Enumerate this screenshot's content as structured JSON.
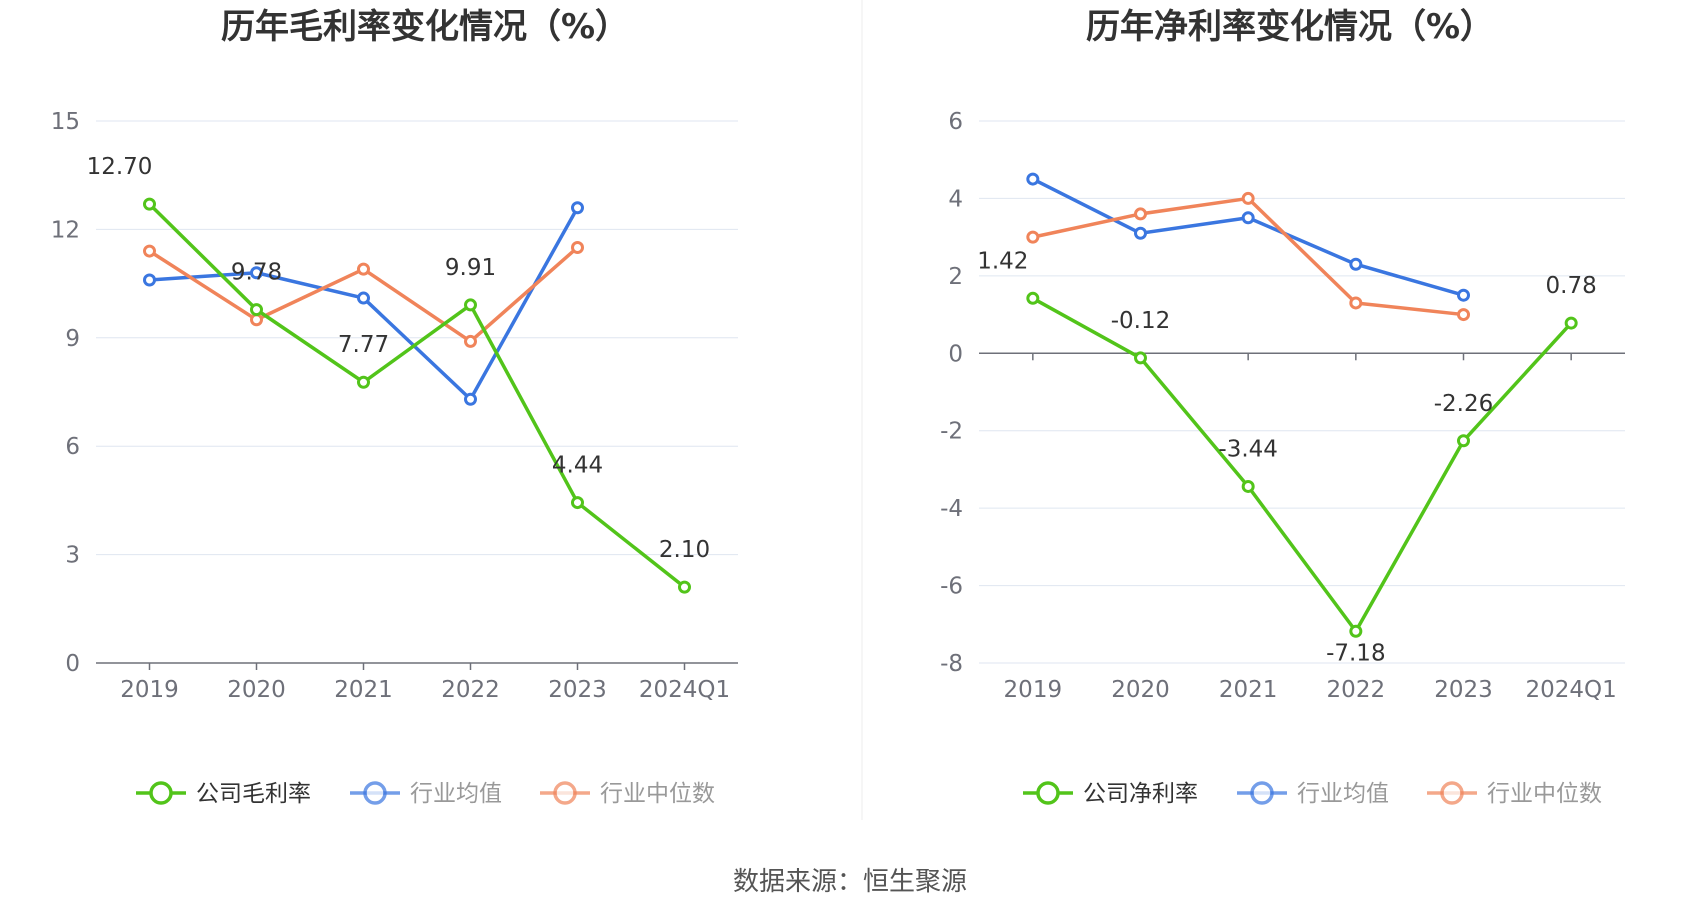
{
  "colors": {
    "company": "#52c41a",
    "industry_avg": "#3a76e0",
    "industry_median": "#f0845a",
    "grid": "#dfe6f0",
    "axis": "#6e7079",
    "text": "#333333"
  },
  "chart_data": [
    {
      "type": "line",
      "title": "历年毛利率变化情况（%）",
      "categories": [
        "2019",
        "2020",
        "2021",
        "2022",
        "2023",
        "2024Q1"
      ],
      "ylim": [
        0,
        15
      ],
      "yticks": [
        "0",
        "3",
        "6",
        "9",
        "12",
        "15"
      ],
      "grid": true,
      "legend_position": "bottom",
      "series": [
        {
          "name": "公司毛利率",
          "color_key": "company",
          "values": [
            12.7,
            9.78,
            7.77,
            9.91,
            4.44,
            2.1
          ],
          "labels": [
            "12.70",
            "9.78",
            "7.77",
            "9.91",
            "4.44",
            "2.10"
          ]
        },
        {
          "name": "行业均值",
          "color_key": "industry_avg",
          "values": [
            10.6,
            10.8,
            10.1,
            7.3,
            12.6,
            null
          ]
        },
        {
          "name": "行业中位数",
          "color_key": "industry_median",
          "values": [
            11.4,
            9.5,
            10.9,
            8.9,
            11.5,
            null
          ]
        }
      ]
    },
    {
      "type": "line",
      "title": "历年净利率变化情况（%）",
      "categories": [
        "2019",
        "2020",
        "2021",
        "2022",
        "2023",
        "2024Q1"
      ],
      "ylim": [
        -8,
        6
      ],
      "yticks": [
        "-8",
        "-6",
        "-4",
        "-2",
        "0",
        "2",
        "4",
        "6"
      ],
      "grid": true,
      "legend_position": "bottom",
      "series": [
        {
          "name": "公司净利率",
          "color_key": "company",
          "values": [
            1.42,
            -0.12,
            -3.44,
            -7.18,
            -2.26,
            0.78
          ],
          "labels": [
            "1.42",
            "-0.12",
            "-3.44",
            "-7.18",
            "-2.26",
            "0.78"
          ]
        },
        {
          "name": "行业均值",
          "color_key": "industry_avg",
          "values": [
            4.5,
            3.1,
            3.5,
            2.3,
            1.5,
            null
          ]
        },
        {
          "name": "行业中位数",
          "color_key": "industry_median",
          "values": [
            3.0,
            3.6,
            4.0,
            1.3,
            1.0,
            null
          ]
        }
      ]
    }
  ],
  "footer": {
    "source": "数据来源：恒生聚源"
  }
}
